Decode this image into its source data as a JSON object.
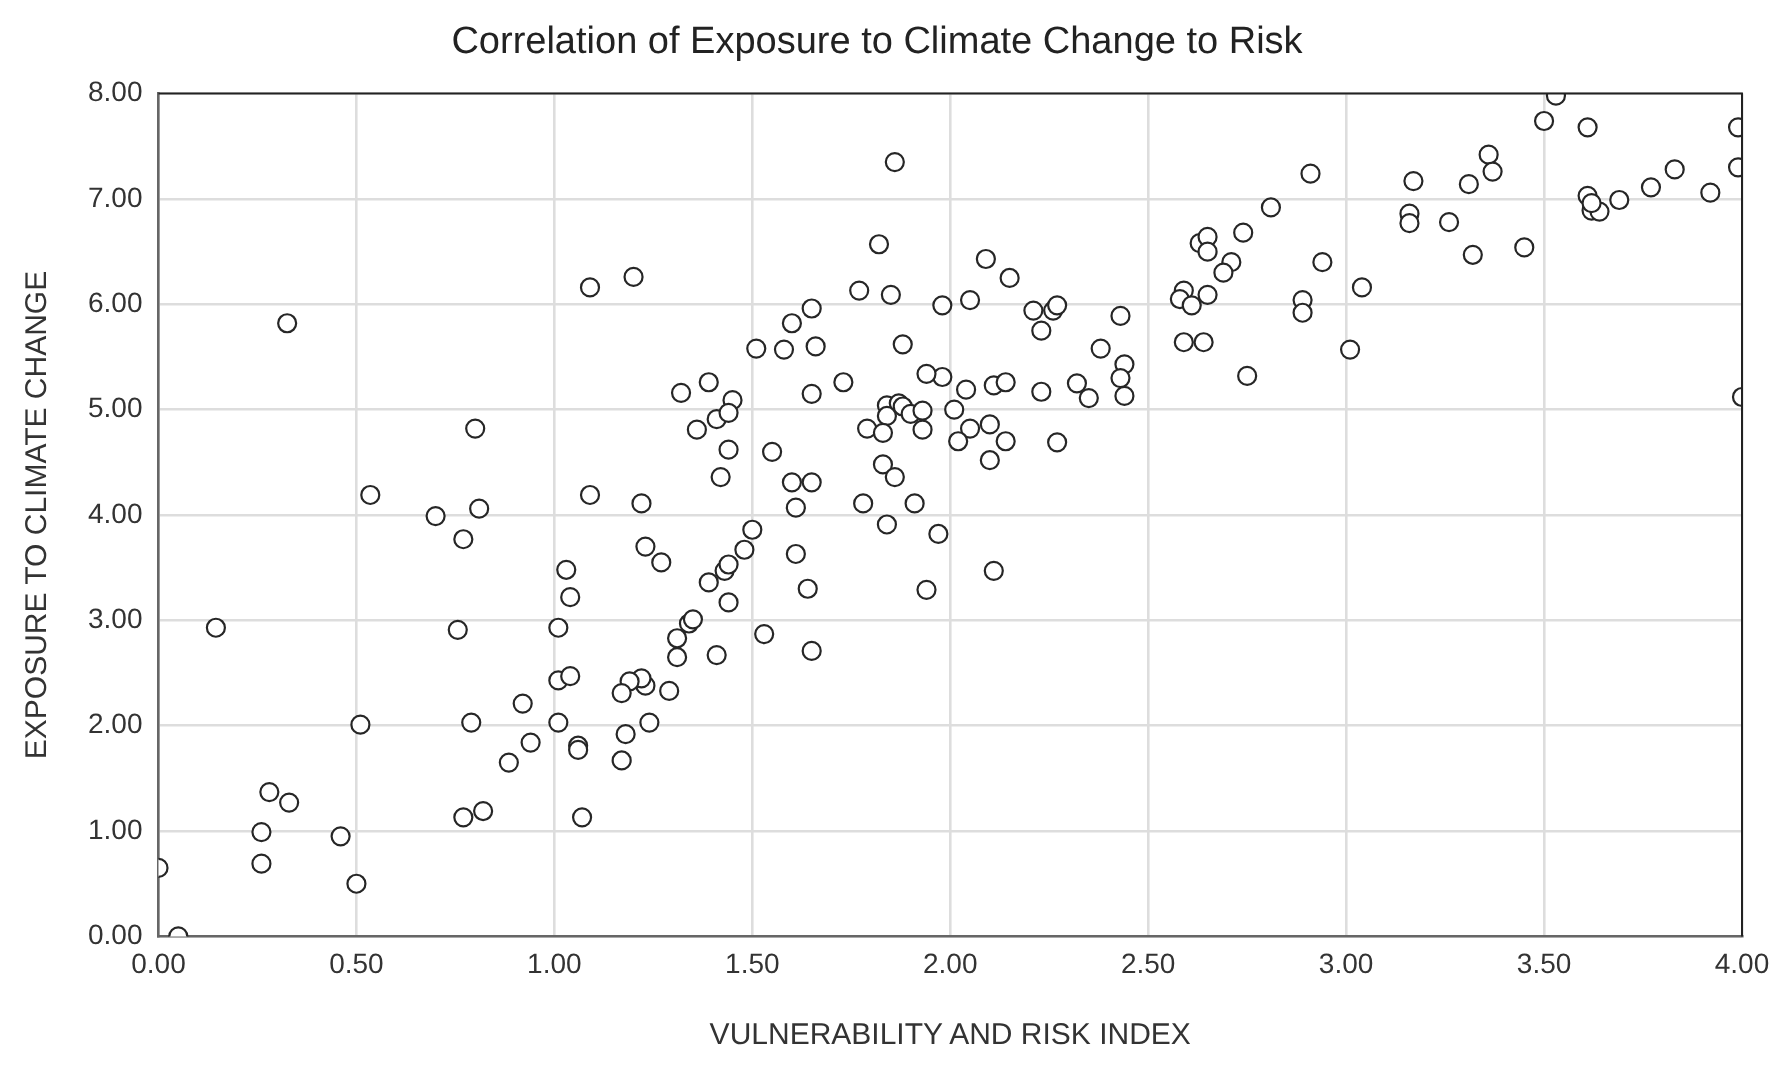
{
  "chart_data": {
    "type": "scatter",
    "title": "Correlation of Exposure to Climate Change to Risk",
    "xlabel": "VULNERABILITY AND RISK INDEX",
    "ylabel": "EXPOSURE TO CLIMATE CHANGE",
    "xlim": [
      0,
      4
    ],
    "ylim": [
      0,
      8
    ],
    "xticks": [
      {
        "value": 0,
        "label": "0.00"
      },
      {
        "value": 0.5,
        "label": "0.50"
      },
      {
        "value": 1,
        "label": "1.00"
      },
      {
        "value": 1.5,
        "label": "1.50"
      },
      {
        "value": 2,
        "label": "2.00"
      },
      {
        "value": 2.5,
        "label": "2.50"
      },
      {
        "value": 3,
        "label": "3.00"
      },
      {
        "value": 3.5,
        "label": "3.50"
      },
      {
        "value": 4,
        "label": "4.00"
      }
    ],
    "yticks": [
      {
        "value": 0,
        "label": "0.00"
      },
      {
        "value": 1,
        "label": "1.00"
      },
      {
        "value": 2,
        "label": "2.00"
      },
      {
        "value": 3,
        "label": "3.00"
      },
      {
        "value": 4,
        "label": "4.00"
      },
      {
        "value": 5,
        "label": "5.00"
      },
      {
        "value": 6,
        "label": "6.00"
      },
      {
        "value": 7,
        "label": "7.00"
      },
      {
        "value": 8,
        "label": "8.00"
      }
    ],
    "grid": true,
    "legend": false,
    "marker": "circle",
    "series": [
      {
        "color": "#262626",
        "x": [
          0.325,
          0.8,
          0.535,
          0.7,
          0.81,
          0.77,
          1.09,
          1.22,
          1.32,
          1.39,
          1.45,
          1.36,
          1.41,
          1.44,
          1.44,
          1.42,
          0.145,
          0.756,
          1.01,
          1.03,
          1.04,
          1.23,
          1.27,
          1.39,
          1.43,
          1.44,
          1.44,
          1.31,
          1.34,
          1.35,
          1.31,
          1.41,
          1.29,
          1.23,
          1.22,
          1.19,
          1.17,
          1.24,
          1.18,
          1.17,
          1.01,
          1.04,
          0.92,
          0.94,
          1.01,
          1.06,
          1.06,
          0.885,
          0.79,
          0.51,
          0.82,
          0.77,
          1.07,
          0.28,
          0.33,
          0.26,
          0.46,
          0.26,
          0.0,
          0.5,
          0.05,
          1.86,
          1.2,
          1.09,
          1.82,
          2.09,
          2.15,
          1.77,
          1.85,
          1.98,
          2.05,
          2.21,
          2.26,
          2.27,
          2.23,
          2.43,
          2.38,
          2.44,
          2.43,
          2.44,
          2.32,
          2.35,
          2.23,
          2.11,
          2.14,
          2.04,
          1.98,
          1.94,
          1.88,
          1.73,
          1.65,
          1.66,
          1.65,
          1.6,
          1.58,
          1.51,
          1.84,
          1.87,
          1.88,
          1.84,
          1.9,
          1.93,
          1.79,
          1.83,
          1.93,
          2.01,
          2.05,
          2.02,
          2.1,
          2.14,
          2.1,
          2.27,
          1.83,
          1.86,
          1.78,
          1.91,
          1.84,
          1.97,
          2.11,
          1.94,
          1.55,
          1.6,
          1.65,
          1.61,
          1.61,
          1.64,
          1.5,
          1.48,
          1.53,
          1.65,
          3.53,
          3.5,
          3.61,
          3.99,
          3.99,
          3.83,
          3.77,
          3.92,
          3.69,
          3.61,
          3.62,
          3.64,
          3.62,
          3.36,
          3.37,
          3.31,
          3.17,
          3.16,
          3.16,
          3.26,
          3.32,
          3.45,
          2.91,
          2.81,
          2.74,
          2.63,
          2.65,
          2.65,
          2.71,
          2.69,
          2.94,
          3.04,
          2.89,
          2.89,
          3.01,
          2.75,
          2.65,
          2.59,
          2.58,
          2.61,
          2.59,
          2.64,
          4.0
        ],
        "values": [
          5.82,
          4.82,
          4.19,
          3.99,
          4.06,
          3.77,
          4.19,
          4.11,
          5.16,
          5.26,
          5.09,
          4.81,
          4.91,
          4.97,
          4.62,
          4.36,
          2.93,
          2.91,
          2.93,
          3.48,
          3.22,
          3.7,
          3.55,
          3.36,
          3.47,
          3.53,
          3.17,
          2.83,
          2.97,
          3.01,
          2.65,
          2.67,
          2.33,
          2.38,
          2.45,
          2.42,
          2.31,
          2.03,
          1.92,
          1.67,
          2.43,
          2.47,
          2.21,
          1.84,
          2.03,
          1.81,
          1.77,
          1.65,
          2.03,
          2.01,
          1.19,
          1.13,
          1.13,
          1.37,
          1.27,
          0.99,
          0.95,
          0.69,
          0.65,
          0.5,
          0.0,
          7.35,
          6.26,
          6.16,
          6.57,
          6.43,
          6.25,
          6.13,
          6.09,
          5.99,
          6.04,
          5.94,
          5.94,
          5.99,
          5.75,
          5.89,
          5.58,
          5.43,
          5.3,
          5.13,
          5.25,
          5.11,
          5.17,
          5.23,
          5.26,
          5.19,
          5.31,
          5.34,
          5.62,
          5.26,
          5.15,
          5.6,
          5.96,
          5.82,
          5.57,
          5.58,
          5.04,
          5.06,
          5.03,
          4.94,
          4.96,
          4.99,
          4.82,
          4.78,
          4.81,
          5.0,
          4.82,
          4.7,
          4.86,
          4.7,
          4.52,
          4.69,
          4.48,
          4.36,
          4.11,
          4.11,
          3.91,
          3.82,
          3.47,
          3.29,
          4.6,
          4.31,
          4.31,
          4.07,
          3.63,
          3.3,
          3.86,
          3.67,
          2.87,
          2.71,
          7.98,
          7.74,
          7.68,
          7.68,
          7.3,
          7.28,
          7.11,
          7.06,
          6.99,
          7.03,
          6.89,
          6.88,
          6.96,
          7.42,
          7.26,
          7.14,
          7.17,
          6.86,
          6.77,
          6.78,
          6.47,
          6.54,
          7.24,
          6.92,
          6.68,
          6.58,
          6.64,
          6.5,
          6.4,
          6.3,
          6.4,
          6.16,
          6.04,
          5.92,
          5.57,
          5.32,
          6.09,
          6.13,
          6.05,
          5.99,
          5.64,
          5.64,
          5.12
        ]
      }
    ]
  }
}
